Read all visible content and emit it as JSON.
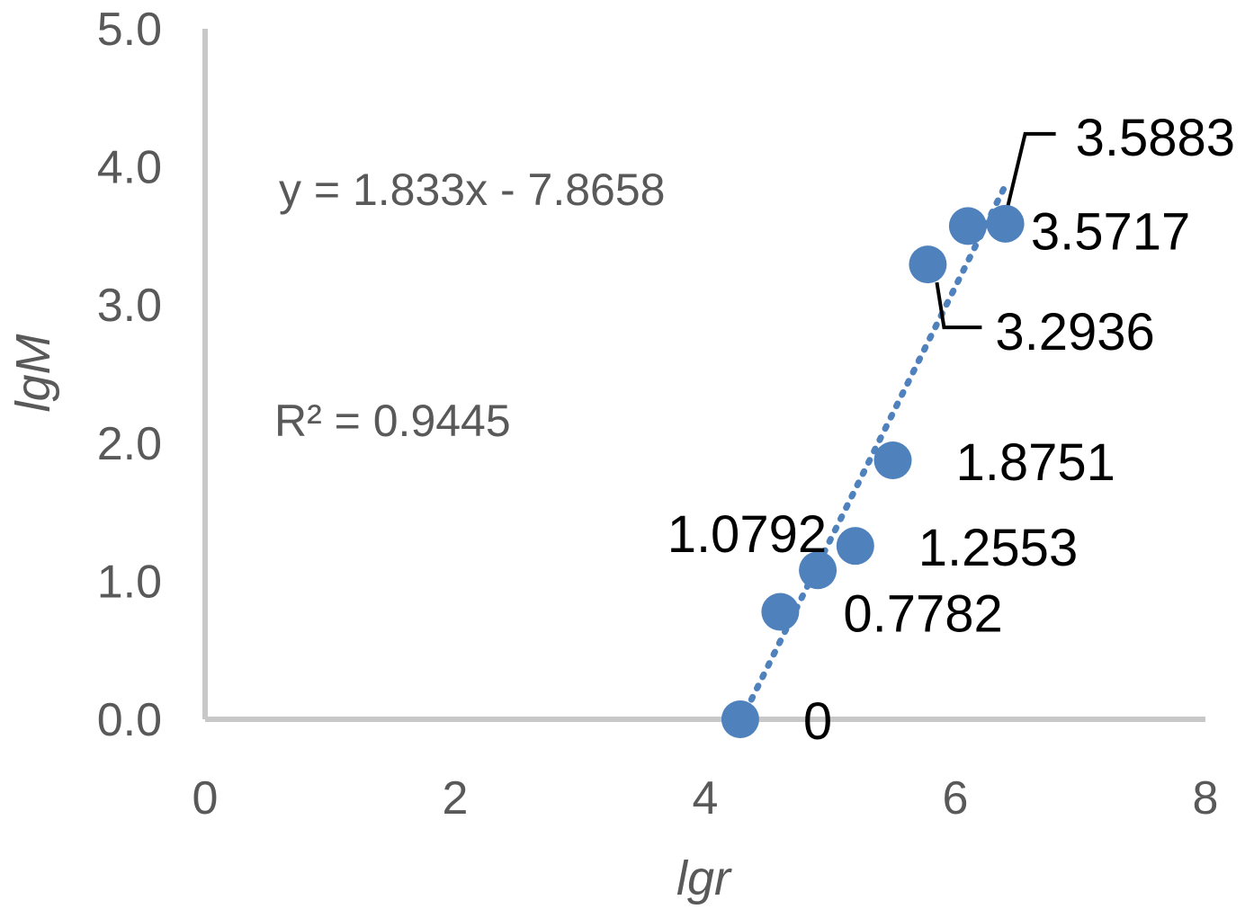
{
  "chart_data": {
    "type": "scatter",
    "title": "",
    "xlabel": "lgr",
    "ylabel": "lgM",
    "xlim": [
      0,
      8
    ],
    "ylim": [
      0,
      5
    ],
    "x_ticks": [
      "0",
      "2",
      "4",
      "6",
      "8"
    ],
    "y_ticks": [
      "0.0",
      "1.0",
      "2.0",
      "3.0",
      "4.0",
      "5.0"
    ],
    "grid": false,
    "legend": "none",
    "marker_color": "#4f81bd",
    "points": [
      {
        "x": 4.28,
        "y": 0,
        "label": "0"
      },
      {
        "x": 4.6,
        "y": 0.7782,
        "label": "0.7782"
      },
      {
        "x": 4.9,
        "y": 1.0792,
        "label": "1.0792"
      },
      {
        "x": 5.2,
        "y": 1.2553,
        "label": "1.2553"
      },
      {
        "x": 5.5,
        "y": 1.8751,
        "label": "1.8751"
      },
      {
        "x": 5.78,
        "y": 3.2936,
        "label": "3.2936"
      },
      {
        "x": 6.1,
        "y": 3.5717,
        "label": "3.5717"
      },
      {
        "x": 6.4,
        "y": 3.5883,
        "label": "3.5883"
      }
    ],
    "trendline": {
      "type": "linear",
      "style": "dotted",
      "slope": 1.833,
      "intercept": -7.8658,
      "x_range": [
        4.28,
        6.4
      ],
      "equation_text": "y = 1.833x - 7.8658",
      "r2_text": "R² = 0.9445"
    }
  }
}
